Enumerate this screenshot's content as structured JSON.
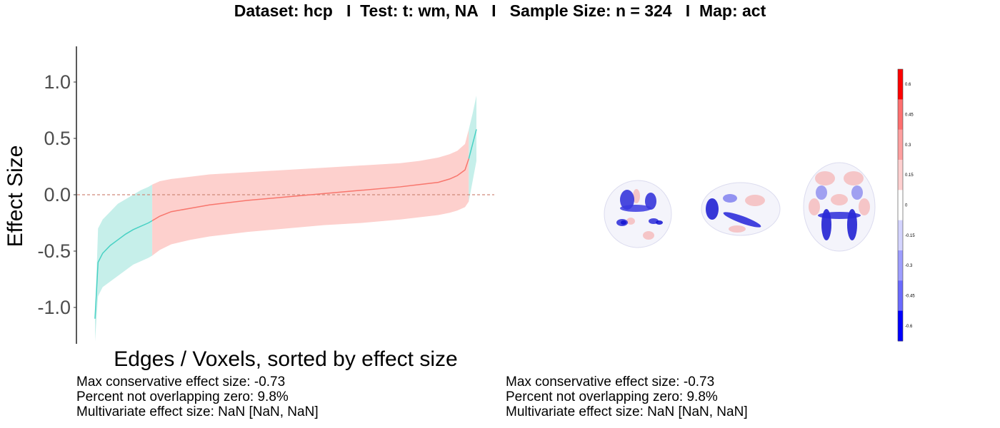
{
  "title": "Dataset: hcp   I  Test: t: wm, NA   I   Sample Size: n = 324   I  Map: act",
  "chart_data": {
    "type": "line",
    "title": "Dataset: hcp   I  Test: t: wm, NA   I   Sample Size: n = 324   I  Map: act",
    "xlabel": "Edges / Voxels, sorted by effect size",
    "ylabel": "Effect Size",
    "ylim": [
      -1.3,
      1.3
    ],
    "yticks": [
      "1.0",
      "0.5",
      "0.0",
      "-0.5",
      "-1.0"
    ],
    "yticks_values": [
      1.0,
      0.5,
      0.0,
      -0.5,
      -1.0
    ],
    "x": [
      0,
      0.8,
      2,
      4,
      6,
      8,
      10,
      12,
      14,
      15,
      17,
      20,
      25,
      30,
      40,
      50,
      60,
      70,
      80,
      85,
      90,
      93,
      95,
      97,
      98,
      99,
      100
    ],
    "estimate": [
      -1.1,
      -0.6,
      -0.52,
      -0.45,
      -0.4,
      -0.35,
      -0.31,
      -0.28,
      -0.25,
      -0.23,
      -0.19,
      -0.15,
      -0.12,
      -0.09,
      -0.05,
      -0.02,
      0.01,
      0.04,
      0.07,
      0.09,
      0.11,
      0.14,
      0.17,
      0.22,
      0.32,
      0.45,
      0.58
    ],
    "ci_lower": [
      -1.3,
      -0.9,
      -0.82,
      -0.77,
      -0.72,
      -0.67,
      -0.62,
      -0.59,
      -0.56,
      -0.54,
      -0.49,
      -0.44,
      -0.4,
      -0.37,
      -0.33,
      -0.3,
      -0.27,
      -0.25,
      -0.22,
      -0.2,
      -0.18,
      -0.16,
      -0.14,
      -0.11,
      -0.06,
      0.12,
      0.3
    ],
    "ci_upper": [
      -1.1,
      -0.3,
      -0.22,
      -0.15,
      -0.08,
      -0.04,
      0.0,
      0.04,
      0.07,
      0.09,
      0.12,
      0.14,
      0.16,
      0.18,
      0.2,
      0.22,
      0.24,
      0.26,
      0.28,
      0.3,
      0.33,
      0.36,
      0.39,
      0.45,
      0.58,
      0.72,
      0.88
    ],
    "ci_not_overlapping_zero_color": "#48d1c4",
    "ci_overlapping_zero_color": "#f8766d",
    "band_colors": {
      "teal": "#c6efea",
      "red": "#fdd0cd"
    },
    "reference_line": 0.0,
    "grid": false
  },
  "colorbar": {
    "labels": [
      "0.6",
      "0.45",
      "0.3",
      "0.15",
      "0",
      "-0.15",
      "-0.3",
      "-0.45",
      "-0.6"
    ],
    "colors": [
      "#ff0000",
      "#ff6f6f",
      "#ffa0a0",
      "#ffd0d0",
      "#ffffff",
      "#d4d4ff",
      "#9e9eff",
      "#6a6aff",
      "#0000ff"
    ]
  },
  "brain_views": [
    "coronal-view",
    "sagittal-view",
    "axial-view"
  ],
  "stats_left": {
    "line1": "Max conservative effect size: -0.73",
    "line2": "Percent not overlapping zero: 9.8%",
    "line3": "Multivariate effect size: NaN [NaN, NaN]"
  },
  "stats_right": {
    "line1": "Max conservative effect size: -0.73",
    "line2": "Percent not overlapping zero: 9.8%",
    "line3": "Multivariate effect size: NaN [NaN, NaN]"
  }
}
